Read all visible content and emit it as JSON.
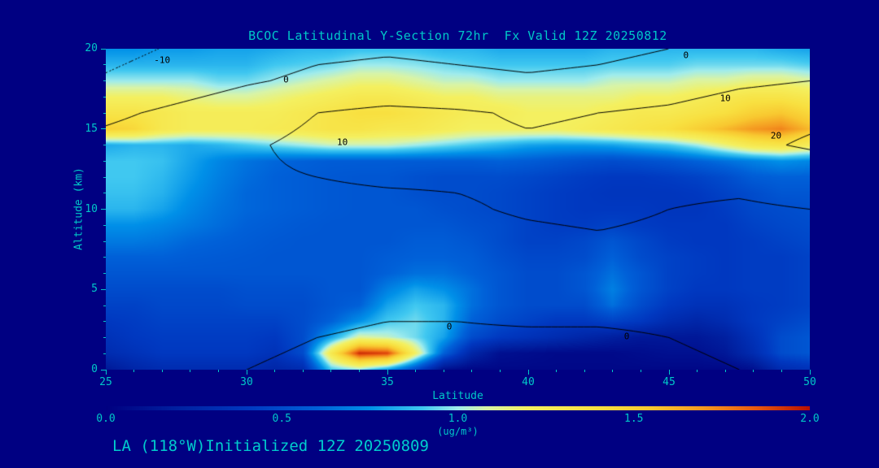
{
  "header": {
    "title": "BCOC Latitudinal Y-Section 72hr  Fx Valid 12Z 20250812"
  },
  "footer": {
    "text": "LA (118°W)Initialized 12Z 20250809"
  },
  "colors": {
    "background": "#000082",
    "axis_text": "#00C8C8",
    "contour_line": "#000000"
  },
  "axes": {
    "x": {
      "label": "Latitude",
      "min": 25,
      "max": 50,
      "major_ticks": [
        25,
        30,
        35,
        40,
        45,
        50
      ],
      "minor_step": 1
    },
    "y": {
      "label": "Altitude (km)",
      "min": 0,
      "max": 20,
      "major_ticks": [
        0,
        5,
        10,
        15,
        20
      ],
      "minor_step": 1
    }
  },
  "colorbar": {
    "min": 0.0,
    "max": 2.0,
    "tick_labels": [
      "0.0",
      "0.5",
      "1.0",
      "1.5",
      "2.0"
    ],
    "unit_label": "(ug/m³)"
  },
  "chart_data": {
    "type": "heatmap",
    "title": "BCOC Latitudinal Y-Section 72hr  Fx Valid 12Z 20250812",
    "xlabel": "Latitude",
    "ylabel": "Altitude (km)",
    "units": "ug/m³",
    "x_range": [
      25,
      50
    ],
    "y_range": [
      0,
      20
    ],
    "lat_step": 1,
    "alt_step": 1,
    "concentration_rows_alt0_to_alt20": [
      [
        0.15,
        0.25,
        0.3,
        0.3,
        0.3,
        0.3,
        0.25,
        0.3,
        0.9,
        1.0,
        0.8,
        0.5,
        0.1,
        0.05,
        0.05,
        0.05,
        0.05,
        0.05,
        0.05,
        0.05,
        0.05,
        0.05,
        0.05,
        0.1,
        0.3,
        0.35
      ],
      [
        0.3,
        0.35,
        0.4,
        0.4,
        0.4,
        0.4,
        0.35,
        0.5,
        1.3,
        1.95,
        1.9,
        1.2,
        0.6,
        0.25,
        0.1,
        0.08,
        0.06,
        0.06,
        0.06,
        0.08,
        0.1,
        0.1,
        0.15,
        0.3,
        0.5,
        0.55
      ],
      [
        0.35,
        0.4,
        0.42,
        0.42,
        0.42,
        0.42,
        0.4,
        0.5,
        0.8,
        1.1,
        1.05,
        0.95,
        0.8,
        0.5,
        0.4,
        0.35,
        0.3,
        0.25,
        0.2,
        0.15,
        0.15,
        0.15,
        0.2,
        0.35,
        0.5,
        0.55
      ],
      [
        0.4,
        0.42,
        0.45,
        0.45,
        0.45,
        0.45,
        0.45,
        0.5,
        0.6,
        0.75,
        0.9,
        0.95,
        0.85,
        0.6,
        0.5,
        0.45,
        0.4,
        0.4,
        0.45,
        0.4,
        0.3,
        0.25,
        0.3,
        0.4,
        0.45,
        0.5
      ],
      [
        0.45,
        0.45,
        0.48,
        0.48,
        0.48,
        0.5,
        0.5,
        0.5,
        0.55,
        0.6,
        0.8,
        0.9,
        0.85,
        0.65,
        0.55,
        0.5,
        0.5,
        0.5,
        0.65,
        0.5,
        0.4,
        0.35,
        0.35,
        0.4,
        0.42,
        0.45
      ],
      [
        0.5,
        0.5,
        0.5,
        0.5,
        0.5,
        0.52,
        0.52,
        0.52,
        0.55,
        0.55,
        0.7,
        0.8,
        0.75,
        0.65,
        0.55,
        0.5,
        0.5,
        0.55,
        0.7,
        0.55,
        0.45,
        0.4,
        0.4,
        0.42,
        0.42,
        0.45
      ],
      [
        0.55,
        0.55,
        0.55,
        0.55,
        0.55,
        0.55,
        0.55,
        0.55,
        0.55,
        0.55,
        0.6,
        0.65,
        0.65,
        0.6,
        0.55,
        0.5,
        0.5,
        0.55,
        0.65,
        0.55,
        0.45,
        0.42,
        0.4,
        0.42,
        0.42,
        0.45
      ],
      [
        0.6,
        0.6,
        0.6,
        0.58,
        0.57,
        0.56,
        0.55,
        0.55,
        0.55,
        0.55,
        0.58,
        0.6,
        0.6,
        0.58,
        0.52,
        0.48,
        0.48,
        0.5,
        0.6,
        0.5,
        0.45,
        0.42,
        0.4,
        0.42,
        0.42,
        0.45
      ],
      [
        0.68,
        0.68,
        0.66,
        0.62,
        0.6,
        0.58,
        0.56,
        0.55,
        0.55,
        0.55,
        0.55,
        0.58,
        0.58,
        0.55,
        0.5,
        0.45,
        0.45,
        0.48,
        0.55,
        0.48,
        0.42,
        0.4,
        0.4,
        0.42,
        0.45,
        0.48
      ],
      [
        0.75,
        0.75,
        0.72,
        0.68,
        0.64,
        0.6,
        0.58,
        0.56,
        0.55,
        0.55,
        0.55,
        0.55,
        0.55,
        0.52,
        0.5,
        0.45,
        0.42,
        0.42,
        0.45,
        0.42,
        0.4,
        0.4,
        0.4,
        0.45,
        0.48,
        0.5
      ],
      [
        0.85,
        0.85,
        0.8,
        0.72,
        0.66,
        0.62,
        0.6,
        0.58,
        0.56,
        0.55,
        0.55,
        0.55,
        0.52,
        0.5,
        0.48,
        0.45,
        0.42,
        0.4,
        0.4,
        0.4,
        0.38,
        0.38,
        0.42,
        0.48,
        0.5,
        0.52
      ],
      [
        0.88,
        0.88,
        0.84,
        0.75,
        0.68,
        0.62,
        0.6,
        0.58,
        0.56,
        0.55,
        0.55,
        0.52,
        0.5,
        0.5,
        0.48,
        0.45,
        0.42,
        0.4,
        0.38,
        0.38,
        0.38,
        0.4,
        0.45,
        0.5,
        0.55,
        0.55
      ],
      [
        0.9,
        0.9,
        0.86,
        0.78,
        0.7,
        0.64,
        0.6,
        0.58,
        0.56,
        0.55,
        0.55,
        0.52,
        0.5,
        0.5,
        0.5,
        0.48,
        0.45,
        0.42,
        0.4,
        0.4,
        0.42,
        0.45,
        0.5,
        0.58,
        0.6,
        0.6
      ],
      [
        0.9,
        0.9,
        0.88,
        0.8,
        0.72,
        0.66,
        0.62,
        0.6,
        0.58,
        0.58,
        0.58,
        0.58,
        0.58,
        0.58,
        0.6,
        0.58,
        0.55,
        0.52,
        0.5,
        0.52,
        0.55,
        0.6,
        0.65,
        0.7,
        0.75,
        0.72
      ],
      [
        0.82,
        0.85,
        0.85,
        0.82,
        0.85,
        0.9,
        0.95,
        1.0,
        1.05,
        1.05,
        1.05,
        1.0,
        0.95,
        0.9,
        0.85,
        0.8,
        0.78,
        0.78,
        0.8,
        0.85,
        0.9,
        1.0,
        1.15,
        1.3,
        1.35,
        1.25
      ],
      [
        1.5,
        1.45,
        1.3,
        1.25,
        1.25,
        1.25,
        1.28,
        1.3,
        1.35,
        1.35,
        1.3,
        1.3,
        1.25,
        1.2,
        1.2,
        1.2,
        1.2,
        1.25,
        1.3,
        1.35,
        1.4,
        1.5,
        1.6,
        1.7,
        1.75,
        1.6
      ],
      [
        1.35,
        1.35,
        1.3,
        1.25,
        1.25,
        1.25,
        1.25,
        1.3,
        1.35,
        1.4,
        1.4,
        1.35,
        1.3,
        1.25,
        1.25,
        1.2,
        1.2,
        1.2,
        1.25,
        1.3,
        1.3,
        1.35,
        1.4,
        1.5,
        1.55,
        1.45
      ],
      [
        1.2,
        1.2,
        1.2,
        1.15,
        1.1,
        1.1,
        1.15,
        1.2,
        1.25,
        1.3,
        1.3,
        1.25,
        1.2,
        1.2,
        1.15,
        1.15,
        1.15,
        1.15,
        1.15,
        1.2,
        1.2,
        1.25,
        1.3,
        1.35,
        1.35,
        1.3
      ],
      [
        1.0,
        1.0,
        1.0,
        1.0,
        0.95,
        0.95,
        1.0,
        1.05,
        1.1,
        1.15,
        1.15,
        1.1,
        1.05,
        1.05,
        1.0,
        1.0,
        1.0,
        1.0,
        1.05,
        1.05,
        1.05,
        1.1,
        1.1,
        1.15,
        1.15,
        1.1
      ],
      [
        0.85,
        0.85,
        0.85,
        0.85,
        0.85,
        0.85,
        0.9,
        0.92,
        0.95,
        1.0,
        1.0,
        0.98,
        0.95,
        0.92,
        0.9,
        0.9,
        0.9,
        0.9,
        0.92,
        0.92,
        0.92,
        0.95,
        0.95,
        0.95,
        0.95,
        0.92
      ],
      [
        0.75,
        0.75,
        0.78,
        0.78,
        0.8,
        0.8,
        0.82,
        0.85,
        0.85,
        0.88,
        0.88,
        0.88,
        0.85,
        0.85,
        0.82,
        0.82,
        0.82,
        0.82,
        0.85,
        0.85,
        0.85,
        0.85,
        0.85,
        0.85,
        0.82,
        0.8
      ]
    ],
    "colormap_stops": [
      [
        0.0,
        "#000080"
      ],
      [
        0.2,
        "#0020A0"
      ],
      [
        0.4,
        "#0038C0"
      ],
      [
        0.6,
        "#0060D8"
      ],
      [
        0.75,
        "#0090E8"
      ],
      [
        0.9,
        "#40C8F0"
      ],
      [
        1.0,
        "#A0ECEC"
      ],
      [
        1.08,
        "#D8F4A8"
      ],
      [
        1.2,
        "#F4F060"
      ],
      [
        1.4,
        "#F8E040"
      ],
      [
        1.55,
        "#F8C830"
      ],
      [
        1.7,
        "#F49820"
      ],
      [
        1.85,
        "#E85810"
      ],
      [
        2.0,
        "#B81000"
      ]
    ],
    "overlay_contours": {
      "levels": [
        -10,
        0,
        10,
        20
      ],
      "negative_line_style": "dotted",
      "lat_points": [
        25,
        27.5,
        30,
        32.5,
        35,
        37.5,
        40,
        42.5,
        45,
        47.5,
        50
      ],
      "alt_points": [
        0,
        2,
        4,
        6,
        8,
        10,
        12,
        14,
        16,
        18,
        20
      ],
      "values_rows_alt0_to_alt20": [
        [
          2,
          1,
          0,
          -1,
          -1,
          -2,
          -2,
          -2,
          -1,
          0,
          1
        ],
        [
          3,
          2,
          1,
          0,
          -1,
          -1,
          -1,
          -1,
          0,
          1,
          2
        ],
        [
          4,
          3,
          2,
          2,
          1,
          1,
          2,
          2,
          2,
          3,
          4
        ],
        [
          5,
          4,
          3,
          4,
          3,
          4,
          5,
          6,
          5,
          5,
          6
        ],
        [
          6,
          5,
          5,
          6,
          6,
          7,
          8,
          9,
          8,
          7,
          8
        ],
        [
          6,
          6,
          7,
          8,
          8,
          9,
          11,
          12,
          10,
          9,
          10
        ],
        [
          5,
          7,
          9,
          10,
          11,
          11,
          12,
          13,
          12,
          12,
          14
        ],
        [
          3,
          6,
          9,
          12,
          13,
          12,
          11,
          12,
          14,
          18,
          21
        ],
        [
          -2,
          2,
          6,
          10,
          12,
          11,
          9,
          10,
          12,
          16,
          18
        ],
        [
          -9,
          -5,
          -1,
          2,
          3,
          2,
          1,
          2,
          4,
          8,
          10
        ],
        [
          -13,
          -9,
          -5,
          -2,
          -1,
          -2,
          -3,
          -2,
          0,
          3,
          4
        ]
      ],
      "labels": [
        {
          "text": "-10",
          "lat": 27.0,
          "alt": 19.3
        },
        {
          "text": "0",
          "lat": 31.4,
          "alt": 18.1
        },
        {
          "text": "0",
          "lat": 45.6,
          "alt": 19.6
        },
        {
          "text": "10",
          "lat": 33.4,
          "alt": 14.2
        },
        {
          "text": "10",
          "lat": 47.0,
          "alt": 16.9
        },
        {
          "text": "20",
          "lat": 48.8,
          "alt": 14.6
        },
        {
          "text": "0",
          "lat": 37.2,
          "alt": 2.7
        },
        {
          "text": "0",
          "lat": 43.5,
          "alt": 2.1
        }
      ]
    }
  }
}
